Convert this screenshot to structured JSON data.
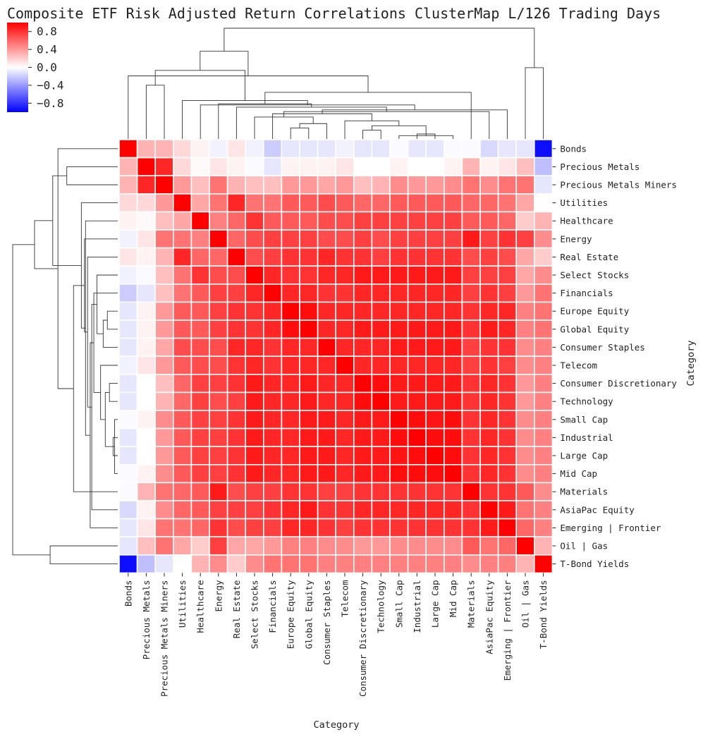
{
  "chart_data": {
    "type": "heatmap",
    "title": "Composite ETF Risk Adjusted Return Correlations ClusterMap L/126 Trading Days",
    "xlabel": "Category",
    "ylabel": "Category",
    "colormap": "bwr",
    "colors": {
      "negative": "#0000ff",
      "neutral": "#ffffff",
      "positive": "#ff0000",
      "line": "#333333"
    },
    "vmin": -1.0,
    "vmax": 1.0,
    "colorbar_ticks": [
      0.8,
      0.4,
      0.0,
      -0.4,
      -0.8
    ],
    "colorbar_tick_labels": [
      "0.8",
      "0.4",
      "0.0",
      "−0.4",
      "−0.8"
    ],
    "categories": [
      "Bonds",
      "Precious Metals",
      "Precious Metals Miners",
      "Utilities",
      "Healthcare",
      "Energy",
      "Real Estate",
      "Select Stocks",
      "Financials",
      "Europe Equity",
      "Global Equity",
      "Consumer Staples",
      "Telecom",
      "Consumer Discretionary",
      "Technology",
      "Small Cap",
      "Industrial",
      "Large Cap",
      "Mid Cap",
      "Materials",
      "AsiaPac Equity",
      "Emerging | Frontier",
      "Oil | Gas",
      "T-Bond Yields"
    ],
    "values": [
      [
        1.0,
        0.3,
        0.3,
        0.15,
        0.05,
        -0.05,
        0.1,
        -0.05,
        -0.2,
        -0.1,
        -0.1,
        -0.1,
        -0.05,
        -0.1,
        -0.1,
        -0.02,
        -0.1,
        -0.1,
        -0.02,
        -0.02,
        -0.15,
        -0.1,
        -0.1,
        -0.95
      ],
      [
        0.3,
        1.0,
        0.85,
        0.15,
        0.02,
        0.1,
        0.05,
        -0.02,
        -0.1,
        0.05,
        0.05,
        0.05,
        0.1,
        0.0,
        0.0,
        0.05,
        0.0,
        0.0,
        0.05,
        0.3,
        0.05,
        0.1,
        0.25,
        -0.25
      ],
      [
        0.3,
        0.85,
        1.0,
        0.4,
        0.25,
        0.55,
        0.3,
        0.25,
        0.25,
        0.4,
        0.4,
        0.35,
        0.4,
        0.25,
        0.3,
        0.45,
        0.4,
        0.4,
        0.45,
        0.55,
        0.45,
        0.55,
        0.55,
        -0.1
      ],
      [
        0.15,
        0.15,
        0.4,
        1.0,
        0.35,
        0.55,
        0.85,
        0.55,
        0.55,
        0.65,
        0.65,
        0.7,
        0.65,
        0.6,
        0.6,
        0.65,
        0.65,
        0.65,
        0.65,
        0.6,
        0.6,
        0.55,
        0.35,
        0.0
      ],
      [
        0.05,
        0.02,
        0.25,
        0.35,
        1.0,
        0.5,
        0.6,
        0.8,
        0.65,
        0.65,
        0.65,
        0.7,
        0.7,
        0.75,
        0.75,
        0.75,
        0.75,
        0.75,
        0.75,
        0.65,
        0.65,
        0.6,
        0.2,
        0.3
      ],
      [
        -0.05,
        0.1,
        0.55,
        0.55,
        0.5,
        1.0,
        0.6,
        0.7,
        0.75,
        0.75,
        0.75,
        0.7,
        0.7,
        0.75,
        0.7,
        0.75,
        0.75,
        0.75,
        0.75,
        0.9,
        0.75,
        0.8,
        0.75,
        0.45
      ],
      [
        0.1,
        0.05,
        0.3,
        0.85,
        0.6,
        0.6,
        1.0,
        0.7,
        0.75,
        0.8,
        0.8,
        0.85,
        0.8,
        0.8,
        0.75,
        0.8,
        0.8,
        0.8,
        0.8,
        0.7,
        0.75,
        0.7,
        0.35,
        0.2
      ],
      [
        -0.05,
        -0.02,
        0.25,
        0.55,
        0.8,
        0.7,
        0.7,
        1.0,
        0.85,
        0.8,
        0.8,
        0.85,
        0.85,
        0.9,
        0.9,
        0.9,
        0.9,
        0.9,
        0.9,
        0.75,
        0.75,
        0.75,
        0.35,
        0.45
      ],
      [
        -0.2,
        -0.1,
        0.25,
        0.55,
        0.65,
        0.75,
        0.75,
        0.85,
        1.0,
        0.85,
        0.85,
        0.8,
        0.8,
        0.85,
        0.85,
        0.85,
        0.85,
        0.85,
        0.85,
        0.75,
        0.8,
        0.75,
        0.4,
        0.55
      ],
      [
        -0.1,
        0.05,
        0.4,
        0.65,
        0.65,
        0.75,
        0.8,
        0.8,
        0.85,
        1.0,
        0.95,
        0.85,
        0.85,
        0.85,
        0.85,
        0.85,
        0.85,
        0.85,
        0.85,
        0.8,
        0.85,
        0.85,
        0.5,
        0.55
      ],
      [
        -0.1,
        0.05,
        0.4,
        0.65,
        0.65,
        0.75,
        0.8,
        0.8,
        0.85,
        0.95,
        1.0,
        0.85,
        0.85,
        0.9,
        0.9,
        0.9,
        0.9,
        0.9,
        0.9,
        0.8,
        0.9,
        0.85,
        0.5,
        0.55
      ],
      [
        -0.1,
        0.05,
        0.35,
        0.7,
        0.7,
        0.7,
        0.85,
        0.85,
        0.8,
        0.85,
        0.85,
        1.0,
        0.85,
        0.85,
        0.85,
        0.9,
        0.9,
        0.9,
        0.9,
        0.75,
        0.8,
        0.8,
        0.45,
        0.5
      ],
      [
        -0.05,
        0.1,
        0.4,
        0.65,
        0.7,
        0.7,
        0.8,
        0.85,
        0.8,
        0.85,
        0.85,
        0.85,
        1.0,
        0.85,
        0.85,
        0.85,
        0.85,
        0.85,
        0.85,
        0.75,
        0.8,
        0.75,
        0.45,
        0.5
      ],
      [
        -0.1,
        0.0,
        0.25,
        0.6,
        0.75,
        0.75,
        0.8,
        0.9,
        0.85,
        0.85,
        0.9,
        0.85,
        0.85,
        1.0,
        0.95,
        0.9,
        0.9,
        0.9,
        0.9,
        0.8,
        0.85,
        0.8,
        0.4,
        0.5
      ],
      [
        -0.1,
        0.0,
        0.3,
        0.6,
        0.75,
        0.7,
        0.75,
        0.9,
        0.85,
        0.85,
        0.9,
        0.85,
        0.85,
        0.95,
        1.0,
        0.9,
        0.9,
        0.9,
        0.9,
        0.8,
        0.85,
        0.8,
        0.4,
        0.5
      ],
      [
        -0.02,
        0.05,
        0.45,
        0.65,
        0.75,
        0.75,
        0.8,
        0.9,
        0.85,
        0.85,
        0.9,
        0.9,
        0.85,
        0.9,
        0.9,
        1.0,
        0.95,
        0.92,
        0.95,
        0.8,
        0.85,
        0.8,
        0.45,
        0.5
      ],
      [
        -0.1,
        0.0,
        0.4,
        0.65,
        0.75,
        0.75,
        0.8,
        0.9,
        0.85,
        0.85,
        0.9,
        0.9,
        0.85,
        0.9,
        0.9,
        0.95,
        1.0,
        0.95,
        0.95,
        0.8,
        0.85,
        0.8,
        0.45,
        0.5
      ],
      [
        -0.1,
        0.0,
        0.4,
        0.65,
        0.75,
        0.75,
        0.8,
        0.9,
        0.85,
        0.85,
        0.9,
        0.9,
        0.85,
        0.9,
        0.9,
        0.92,
        0.95,
        1.0,
        0.95,
        0.8,
        0.85,
        0.8,
        0.45,
        0.5
      ],
      [
        -0.02,
        0.05,
        0.45,
        0.65,
        0.75,
        0.75,
        0.8,
        0.9,
        0.85,
        0.85,
        0.9,
        0.9,
        0.85,
        0.9,
        0.9,
        0.95,
        0.95,
        0.95,
        1.0,
        0.8,
        0.85,
        0.8,
        0.45,
        0.5
      ],
      [
        -0.02,
        0.3,
        0.55,
        0.6,
        0.65,
        0.9,
        0.7,
        0.75,
        0.75,
        0.8,
        0.8,
        0.75,
        0.75,
        0.8,
        0.8,
        0.8,
        0.8,
        0.8,
        0.8,
        1.0,
        0.8,
        0.8,
        0.65,
        0.45
      ],
      [
        -0.15,
        0.05,
        0.45,
        0.6,
        0.65,
        0.75,
        0.75,
        0.75,
        0.8,
        0.85,
        0.9,
        0.8,
        0.8,
        0.85,
        0.85,
        0.85,
        0.85,
        0.85,
        0.85,
        0.8,
        1.0,
        0.9,
        0.55,
        0.5
      ],
      [
        -0.1,
        0.1,
        0.55,
        0.55,
        0.6,
        0.8,
        0.7,
        0.75,
        0.75,
        0.85,
        0.85,
        0.8,
        0.75,
        0.8,
        0.8,
        0.8,
        0.8,
        0.8,
        0.8,
        0.8,
        0.9,
        1.0,
        0.6,
        0.5
      ],
      [
        -0.1,
        0.25,
        0.55,
        0.35,
        0.2,
        0.75,
        0.35,
        0.35,
        0.4,
        0.5,
        0.5,
        0.45,
        0.45,
        0.4,
        0.4,
        0.45,
        0.45,
        0.45,
        0.45,
        0.65,
        0.55,
        0.6,
        1.0,
        0.3
      ],
      [
        -0.95,
        -0.25,
        -0.1,
        0.0,
        0.3,
        0.45,
        0.2,
        0.45,
        0.55,
        0.55,
        0.55,
        0.5,
        0.5,
        0.5,
        0.5,
        0.5,
        0.5,
        0.5,
        0.5,
        0.45,
        0.5,
        0.5,
        0.3,
        1.0
      ]
    ],
    "dendrogram": {
      "merges": [
        [
          15,
          18
        ],
        [
          16,
          17
        ],
        [
          24,
          25
        ],
        [
          13,
          14
        ],
        [
          10,
          9
        ],
        [
          26,
          27
        ],
        [
          28,
          11
        ],
        [
          29,
          12
        ],
        [
          30,
          7
        ],
        [
          31,
          8
        ],
        [
          32,
          20
        ],
        [
          33,
          21
        ],
        [
          34,
          6
        ],
        [
          35,
          4
        ],
        [
          36,
          5
        ],
        [
          37,
          3
        ],
        [
          38,
          19
        ],
        [
          1,
          2
        ],
        [
          0,
          40
        ],
        [
          39,
          41
        ],
        [
          22,
          23
        ],
        [
          42,
          43
        ],
        [
          44,
          45
        ]
      ],
      "heights": [
        0.06,
        0.09,
        0.13,
        0.16,
        0.2,
        0.24,
        0.28,
        0.33,
        0.4,
        0.46,
        0.5,
        0.53,
        0.58,
        0.62,
        0.64,
        0.7,
        0.85,
        0.98,
        1.15,
        1.25,
        1.3,
        1.6,
        2.02
      ]
    }
  }
}
